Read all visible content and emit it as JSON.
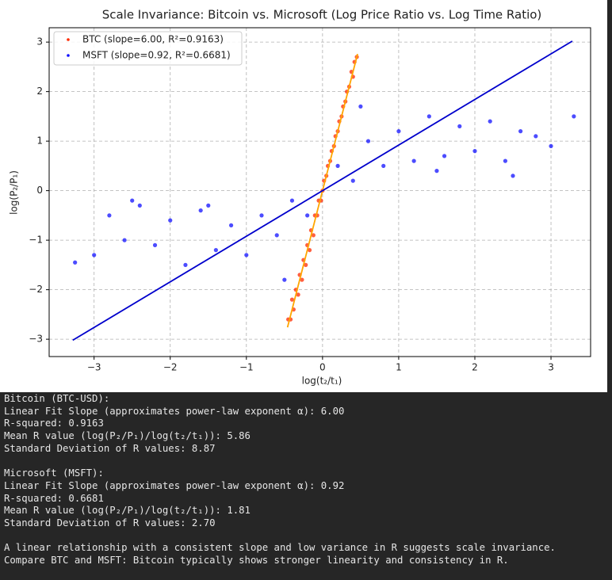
{
  "chart_data": {
    "type": "scatter",
    "title": "Scale Invariance: Bitcoin vs. Microsoft (Log Price Ratio vs. Log Time Ratio)",
    "x_label": "log(t₂/t₁)",
    "y_label": "log(P₂/P₁)",
    "xlim": [
      -3.59,
      3.52
    ],
    "ylim": [
      -3.35,
      3.29
    ],
    "xticks": [
      {
        "value": -3,
        "label": "−3"
      },
      {
        "value": -2,
        "label": "−2"
      },
      {
        "value": -1,
        "label": "−1"
      },
      0,
      1,
      2,
      3
    ],
    "yticks": [
      {
        "value": -3,
        "label": "−3"
      },
      {
        "value": -2,
        "label": "−2"
      },
      {
        "value": -1,
        "label": "−1"
      },
      0,
      1,
      2,
      3
    ],
    "grid": true,
    "legend": "upper left",
    "series": [
      {
        "name": "BTC (slope=6.00, R²=0.9163)",
        "color": "#ff2a00",
        "x": [
          -0.45,
          -0.42,
          -0.4,
          -0.38,
          -0.35,
          -0.32,
          -0.3,
          -0.27,
          -0.25,
          -0.22,
          -0.2,
          -0.17,
          -0.15,
          -0.12,
          -0.1,
          -0.07,
          -0.05,
          -0.02,
          0,
          0.02,
          0.05,
          0.07,
          0.1,
          0.12,
          0.15,
          0.17,
          0.2,
          0.22,
          0.25,
          0.27,
          0.3,
          0.32,
          0.35,
          0.38,
          0.4,
          0.42,
          0.45
        ],
        "values": [
          -2.6,
          -2.6,
          -2.2,
          -2.4,
          -2.0,
          -2.1,
          -1.7,
          -1.8,
          -1.4,
          -1.5,
          -1.1,
          -1.2,
          -0.8,
          -0.9,
          -0.5,
          -0.5,
          -0.2,
          -0.2,
          0,
          0.2,
          0.3,
          0.5,
          0.6,
          0.8,
          0.9,
          1.1,
          1.2,
          1.4,
          1.5,
          1.7,
          1.8,
          2.0,
          2.1,
          2.4,
          2.3,
          2.6,
          2.7
        ]
      },
      {
        "name": "MSFT (slope=0.92, R²=0.6681)",
        "color": "#1010ff",
        "x": [
          -3.25,
          -3.0,
          -2.8,
          -2.6,
          -2.4,
          -2.2,
          -2.0,
          -1.8,
          -1.6,
          -1.4,
          -1.2,
          -1.0,
          -0.8,
          -0.6,
          -0.4,
          -0.2,
          0.2,
          0.4,
          0.6,
          0.8,
          1.0,
          1.2,
          1.4,
          1.6,
          1.8,
          2.0,
          2.2,
          2.4,
          2.6,
          2.8,
          3.0,
          3.3,
          -2.5,
          -1.5,
          -0.5,
          0.5,
          1.5,
          2.5
        ],
        "values": [
          -1.45,
          -1.3,
          -0.5,
          -1.0,
          -0.3,
          -1.1,
          -0.6,
          -1.5,
          -0.4,
          -1.2,
          -0.7,
          -1.3,
          -0.5,
          -0.9,
          -0.2,
          -0.5,
          0.5,
          0.2,
          1.0,
          0.5,
          1.2,
          0.6,
          1.5,
          0.7,
          1.3,
          0.8,
          1.4,
          0.6,
          1.2,
          1.1,
          0.9,
          1.5,
          -0.2,
          -0.3,
          -1.8,
          1.7,
          0.4,
          0.3
        ]
      }
    ],
    "fit_lines": [
      {
        "color": "#ffa500",
        "x": [
          -0.46,
          0.46
        ],
        "values": [
          -2.76,
          2.76
        ]
      },
      {
        "color": "#0000cc",
        "x": [
          -3.28,
          3.28
        ],
        "values": [
          -3.02,
          3.02
        ]
      }
    ]
  },
  "output": {
    "blocks": [
      [
        "Bitcoin (BTC-USD):",
        "Linear Fit Slope (approximates power-law exponent α): 6.00",
        "R-squared: 0.9163",
        "Mean R value (log(P₂/P₁)/log(t₂/t₁)): 5.86",
        "Standard Deviation of R values: 8.87"
      ],
      [
        "Microsoft (MSFT):",
        "Linear Fit Slope (approximates power-law exponent α): 0.92",
        "R-squared: 0.6681",
        "Mean R value (log(P₂/P₁)/log(t₂/t₁)): 1.81",
        "Standard Deviation of R values: 2.70"
      ],
      [
        "A linear relationship with a consistent slope and low variance in R suggests scale invariance.",
        "Compare BTC and MSFT: Bitcoin typically shows stronger linearity and consistency in R."
      ]
    ]
  }
}
